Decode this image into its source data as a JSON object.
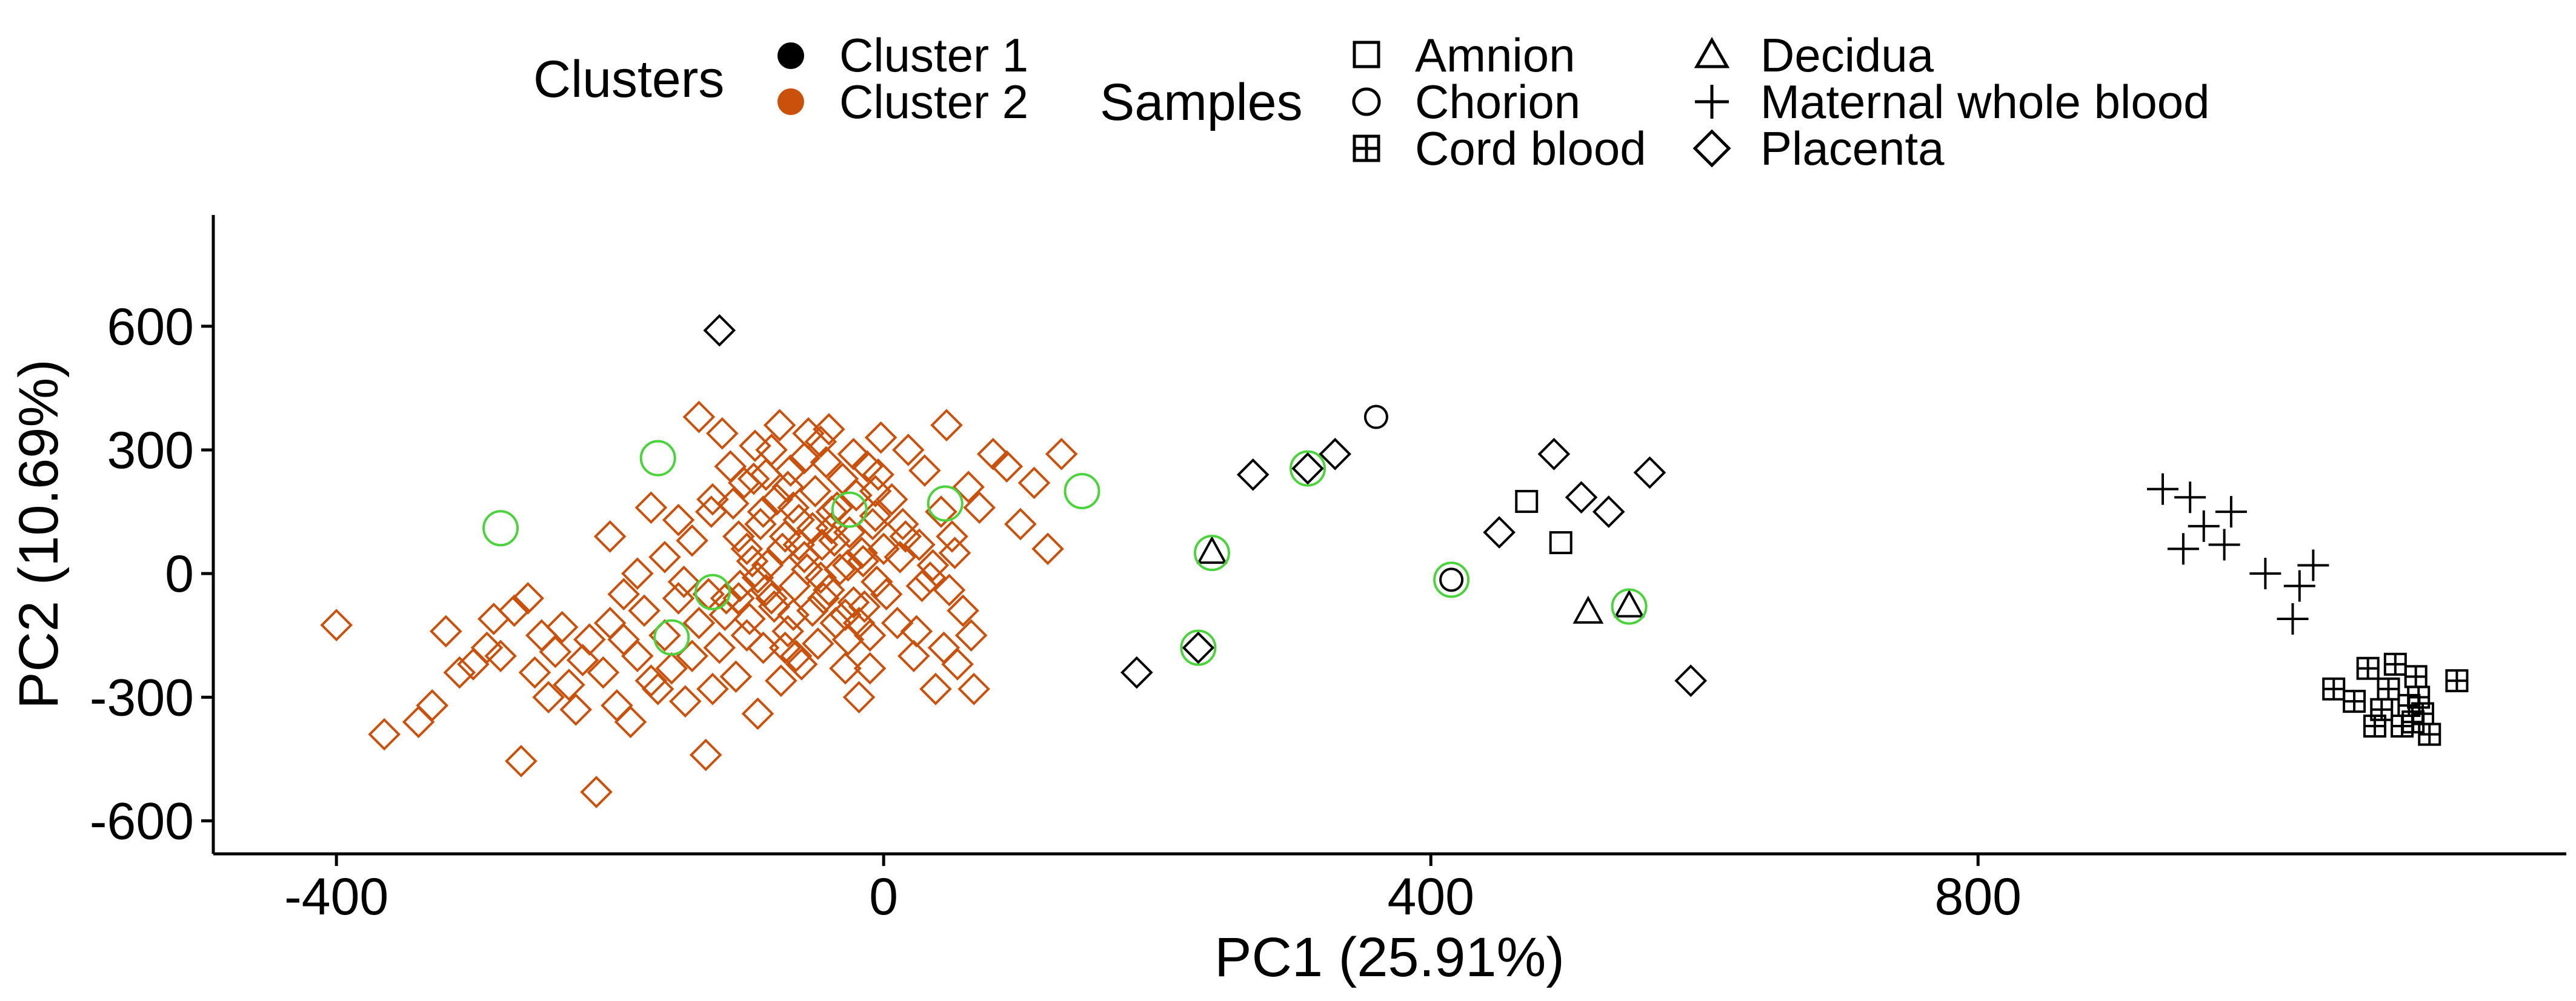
{
  "colors": {
    "cluster_1": "#000000",
    "cluster_2": "#C9510C",
    "highlight_ring": "#4CD23C",
    "axis": "#000000",
    "background": "#FFFFFF"
  },
  "legend": {
    "clusters_title": "Clusters",
    "clusters": [
      {
        "label": "Cluster 1",
        "key": "c1"
      },
      {
        "label": "Cluster 2",
        "key": "c2"
      }
    ],
    "samples_title": "Samples",
    "samples": [
      {
        "label": "Amnion",
        "shape": "square"
      },
      {
        "label": "Chorion",
        "shape": "circle"
      },
      {
        "label": "Cord blood",
        "shape": "square-plus"
      },
      {
        "label": "Decidua",
        "shape": "triangle"
      },
      {
        "label": "Maternal whole blood",
        "shape": "plus"
      },
      {
        "label": "Placenta",
        "shape": "diamond"
      }
    ]
  },
  "chart_data": {
    "type": "scatter",
    "xlabel": "PC1 (25.91%)",
    "ylabel": "PC2 (10.69%)",
    "xlim": [
      -490,
      1230
    ],
    "ylim": [
      -680,
      870
    ],
    "xticks": [
      -400,
      0,
      400,
      800
    ],
    "yticks": [
      600,
      300,
      0,
      -300,
      -600
    ],
    "grid": false,
    "legend_position": "top",
    "series": [
      {
        "name": "Cluster 2",
        "color_key": "cluster_2",
        "shape": "diamond",
        "points": [
          [
            -400,
            -125
          ],
          [
            -365,
            -390
          ],
          [
            -340,
            -360
          ],
          [
            -330,
            -320
          ],
          [
            -320,
            -140
          ],
          [
            -310,
            -240
          ],
          [
            -300,
            -220
          ],
          [
            -290,
            -180
          ],
          [
            -285,
            -110
          ],
          [
            -280,
            -200
          ],
          [
            -270,
            -90
          ],
          [
            -265,
            -455
          ],
          [
            -260,
            -60
          ],
          [
            -255,
            -240
          ],
          [
            -250,
            -150
          ],
          [
            -245,
            -300
          ],
          [
            -240,
            -190
          ],
          [
            -235,
            -130
          ],
          [
            -230,
            -270
          ],
          [
            -225,
            -330
          ],
          [
            -220,
            -210
          ],
          [
            -215,
            -160
          ],
          [
            -210,
            -530
          ],
          [
            -205,
            -240
          ],
          [
            -200,
            -120
          ],
          [
            -195,
            -320
          ],
          [
            -190,
            -160
          ],
          [
            -185,
            -360
          ],
          [
            -180,
            -200
          ],
          [
            -175,
            -90
          ],
          [
            -170,
            -260
          ],
          [
            -165,
            -280
          ],
          [
            -160,
            -150
          ],
          [
            -155,
            -230
          ],
          [
            -150,
            -60
          ],
          [
            -145,
            -310
          ],
          [
            -140,
            -200
          ],
          [
            -135,
            -120
          ],
          [
            -130,
            -440
          ],
          [
            -125,
            -280
          ],
          [
            -120,
            -180
          ],
          [
            -115,
            -60
          ],
          [
            -110,
            170
          ],
          [
            -108,
            -250
          ],
          [
            -105,
            -30
          ],
          [
            -100,
            60
          ],
          [
            -98,
            -110
          ],
          [
            -95,
            230
          ],
          [
            -92,
            -340
          ],
          [
            -90,
            120
          ],
          [
            -88,
            -180
          ],
          [
            -85,
            20
          ],
          [
            -82,
            300
          ],
          [
            -80,
            -80
          ],
          [
            -78,
            180
          ],
          [
            -75,
            -260
          ],
          [
            -72,
            90
          ],
          [
            -70,
            -140
          ],
          [
            -68,
            250
          ],
          [
            -65,
            -30
          ],
          [
            -62,
            130
          ],
          [
            -60,
            -220
          ],
          [
            -58,
            40
          ],
          [
            -55,
            340
          ],
          [
            -52,
            -90
          ],
          [
            -50,
            200
          ],
          [
            -48,
            -170
          ],
          [
            -45,
            70
          ],
          [
            -42,
            270
          ],
          [
            -40,
            -40
          ],
          [
            -38,
            150
          ],
          [
            -35,
            -120
          ],
          [
            -32,
            10
          ],
          [
            -30,
            230
          ],
          [
            -28,
            -230
          ],
          [
            -25,
            100
          ],
          [
            -22,
            -70
          ],
          [
            -20,
            190
          ],
          [
            -18,
            -300
          ],
          [
            -15,
            30
          ],
          [
            -12,
            260
          ],
          [
            -10,
            -150
          ],
          [
            -8,
            120
          ],
          [
            -5,
            -20
          ],
          [
            -2,
            330
          ],
          [
            0,
            60
          ],
          [
            -135,
            380
          ],
          [
            -125,
            180
          ],
          [
            -118,
            340
          ],
          [
            -112,
            260
          ],
          [
            -106,
            90
          ],
          [
            -100,
            -150
          ],
          [
            -94,
            310
          ],
          [
            -88,
            150
          ],
          [
            -82,
            -60
          ],
          [
            -76,
            360
          ],
          [
            -70,
            210
          ],
          [
            -64,
            -200
          ],
          [
            -58,
            280
          ],
          [
            -52,
            110
          ],
          [
            -46,
            -10
          ],
          [
            -40,
            350
          ],
          [
            -34,
            160
          ],
          [
            -28,
            -100
          ],
          [
            -22,
            290
          ],
          [
            -16,
            50
          ],
          [
            -10,
            -230
          ],
          [
            -4,
            240
          ],
          [
            2,
            -50
          ],
          [
            6,
            180
          ],
          [
            10,
            -120
          ],
          [
            14,
            120
          ],
          [
            18,
            300
          ],
          [
            22,
            -200
          ],
          [
            26,
            70
          ],
          [
            30,
            250
          ],
          [
            34,
            -10
          ],
          [
            38,
            -280
          ],
          [
            42,
            150
          ],
          [
            46,
            360
          ],
          [
            50,
            90
          ],
          [
            54,
            -220
          ],
          [
            58,
            -90
          ],
          [
            62,
            210
          ],
          [
            66,
            -280
          ],
          [
            70,
            160
          ],
          [
            80,
            290
          ],
          [
            90,
            260
          ],
          [
            100,
            120
          ],
          [
            110,
            220
          ],
          [
            120,
            60
          ],
          [
            130,
            290
          ],
          [
            -96,
            30
          ],
          [
            -86,
            -40
          ],
          [
            -74,
            60
          ],
          [
            -66,
            -100
          ],
          [
            -56,
            10
          ],
          [
            -44,
            -60
          ],
          [
            -36,
            80
          ],
          [
            -26,
            20
          ],
          [
            -14,
            -80
          ],
          [
            -6,
            140
          ],
          [
            12,
            40
          ],
          [
            24,
            -140
          ],
          [
            36,
            20
          ],
          [
            48,
            -40
          ],
          [
            -140,
            80
          ],
          [
            -150,
            130
          ],
          [
            -160,
            40
          ],
          [
            -170,
            160
          ],
          [
            -180,
            0
          ],
          [
            -190,
            -50
          ],
          [
            -200,
            90
          ],
          [
            -102,
            220
          ],
          [
            -92,
            -10
          ],
          [
            -72,
            -180
          ],
          [
            -62,
            70
          ],
          [
            -38,
            110
          ],
          [
            -18,
            -120
          ],
          [
            -116,
            -100
          ],
          [
            -106,
            -60
          ],
          [
            -126,
            150
          ],
          [
            -146,
            -20
          ],
          [
            -86,
            240
          ],
          [
            -66,
            160
          ],
          [
            -46,
            320
          ],
          [
            -26,
            -160
          ],
          [
            -6,
            200
          ],
          [
            16,
            90
          ],
          [
            28,
            -30
          ],
          [
            44,
            -180
          ],
          [
            52,
            50
          ],
          [
            64,
            -150
          ],
          [
            -128,
            -50
          ]
        ]
      },
      {
        "name": "Cluster 1",
        "color_key": "cluster_1",
        "points": [
          {
            "x": -120,
            "y": 590,
            "shape": "diamond"
          },
          {
            "x": 185,
            "y": -240,
            "shape": "diamond"
          },
          {
            "x": 230,
            "y": -180,
            "shape": "diamond"
          },
          {
            "x": 240,
            "y": 50,
            "shape": "triangle"
          },
          {
            "x": 270,
            "y": 240,
            "shape": "diamond"
          },
          {
            "x": 310,
            "y": 255,
            "shape": "diamond"
          },
          {
            "x": 330,
            "y": 290,
            "shape": "diamond"
          },
          {
            "x": 360,
            "y": 380,
            "shape": "circle"
          },
          {
            "x": 415,
            "y": -15,
            "shape": "circle"
          },
          {
            "x": 450,
            "y": 100,
            "shape": "diamond"
          },
          {
            "x": 470,
            "y": 175,
            "shape": "square"
          },
          {
            "x": 490,
            "y": 290,
            "shape": "diamond"
          },
          {
            "x": 495,
            "y": 75,
            "shape": "square"
          },
          {
            "x": 510,
            "y": 185,
            "shape": "diamond"
          },
          {
            "x": 515,
            "y": -95,
            "shape": "triangle"
          },
          {
            "x": 530,
            "y": 150,
            "shape": "diamond"
          },
          {
            "x": 545,
            "y": -80,
            "shape": "triangle"
          },
          {
            "x": 560,
            "y": 245,
            "shape": "diamond"
          },
          {
            "x": 590,
            "y": -260,
            "shape": "diamond"
          },
          {
            "x": 935,
            "y": 205,
            "shape": "plus"
          },
          {
            "x": 950,
            "y": 60,
            "shape": "plus"
          },
          {
            "x": 955,
            "y": 185,
            "shape": "plus"
          },
          {
            "x": 965,
            "y": 115,
            "shape": "plus"
          },
          {
            "x": 980,
            "y": 70,
            "shape": "plus"
          },
          {
            "x": 985,
            "y": 150,
            "shape": "plus"
          },
          {
            "x": 1010,
            "y": 0,
            "shape": "plus"
          },
          {
            "x": 1030,
            "y": -110,
            "shape": "plus"
          },
          {
            "x": 1035,
            "y": -30,
            "shape": "plus"
          },
          {
            "x": 1045,
            "y": 20,
            "shape": "plus"
          },
          {
            "x": 1060,
            "y": -280,
            "shape": "square-plus"
          },
          {
            "x": 1075,
            "y": -310,
            "shape": "square-plus"
          },
          {
            "x": 1085,
            "y": -230,
            "shape": "square-plus"
          },
          {
            "x": 1090,
            "y": -370,
            "shape": "square-plus"
          },
          {
            "x": 1095,
            "y": -330,
            "shape": "square-plus"
          },
          {
            "x": 1100,
            "y": -280,
            "shape": "square-plus"
          },
          {
            "x": 1105,
            "y": -220,
            "shape": "square-plus"
          },
          {
            "x": 1110,
            "y": -370,
            "shape": "square-plus"
          },
          {
            "x": 1115,
            "y": -320,
            "shape": "square-plus"
          },
          {
            "x": 1118,
            "y": -360,
            "shape": "square-plus"
          },
          {
            "x": 1120,
            "y": -250,
            "shape": "square-plus"
          },
          {
            "x": 1122,
            "y": -300,
            "shape": "square-plus"
          },
          {
            "x": 1125,
            "y": -340,
            "shape": "square-plus"
          },
          {
            "x": 1130,
            "y": -390,
            "shape": "square-plus"
          },
          {
            "x": 1150,
            "y": -260,
            "shape": "square-plus"
          }
        ]
      }
    ],
    "highlighted_points": [
      [
        -280,
        110
      ],
      [
        -165,
        280
      ],
      [
        -155,
        -155
      ],
      [
        -125,
        -45
      ],
      [
        -25,
        155
      ],
      [
        45,
        170
      ],
      [
        145,
        200
      ],
      [
        230,
        -180
      ],
      [
        240,
        50
      ],
      [
        310,
        255
      ],
      [
        415,
        -15
      ],
      [
        545,
        -80
      ]
    ]
  }
}
